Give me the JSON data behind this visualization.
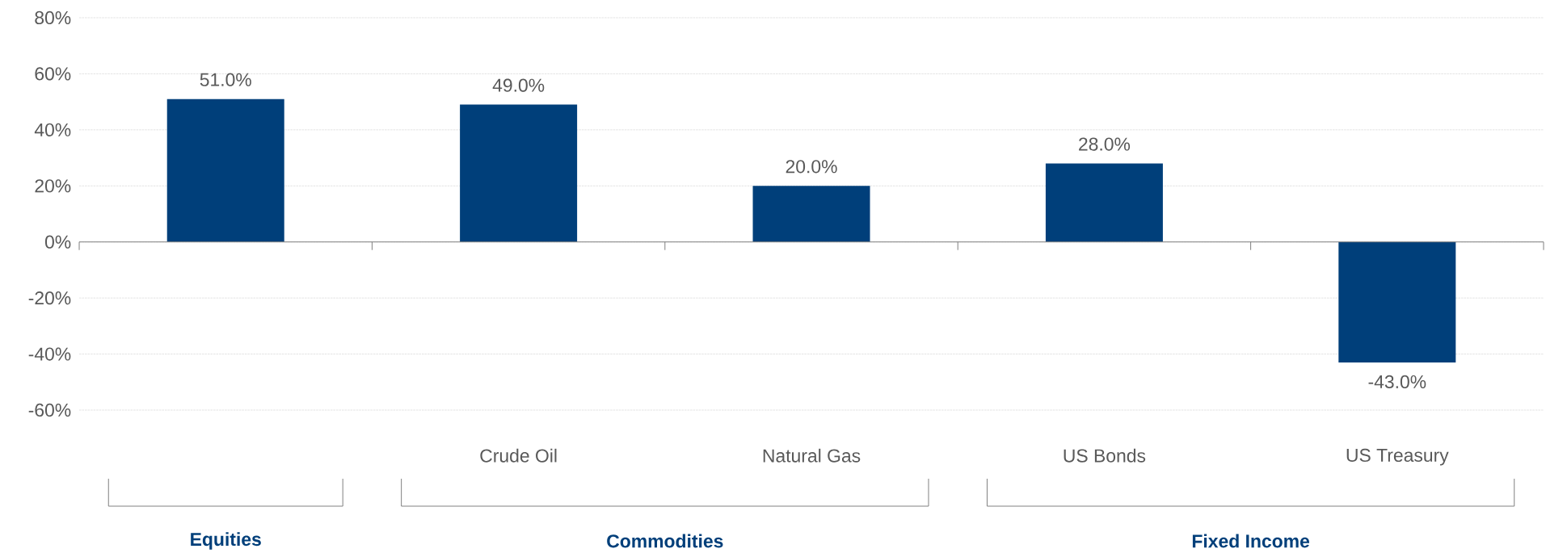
{
  "chart_data": {
    "type": "bar",
    "categories": [
      null,
      "Crude Oil",
      "Natural Gas",
      "US Bonds",
      "US Treasury"
    ],
    "values": [
      51,
      49,
      20,
      28,
      -43
    ],
    "value_labels": [
      "51.0%",
      "49.0%",
      "20.0%",
      "28.0%",
      "-43.0%"
    ],
    "color": "#003f7a",
    "ylim": [
      -60,
      80
    ],
    "yticks": [
      {
        "value": -60,
        "label": "-60%"
      },
      {
        "value": -40,
        "label": "-40%"
      },
      {
        "value": -20,
        "label": "-20%"
      },
      {
        "value": 0,
        "label": "0%"
      },
      {
        "value": 20,
        "label": "20%"
      },
      {
        "value": 40,
        "label": "40%"
      },
      {
        "value": 60,
        "label": "60%"
      },
      {
        "value": 80,
        "label": "80%"
      }
    ],
    "grid": "y",
    "annotations": [
      "Equities",
      "Commodities",
      "Fixed Income"
    ]
  }
}
